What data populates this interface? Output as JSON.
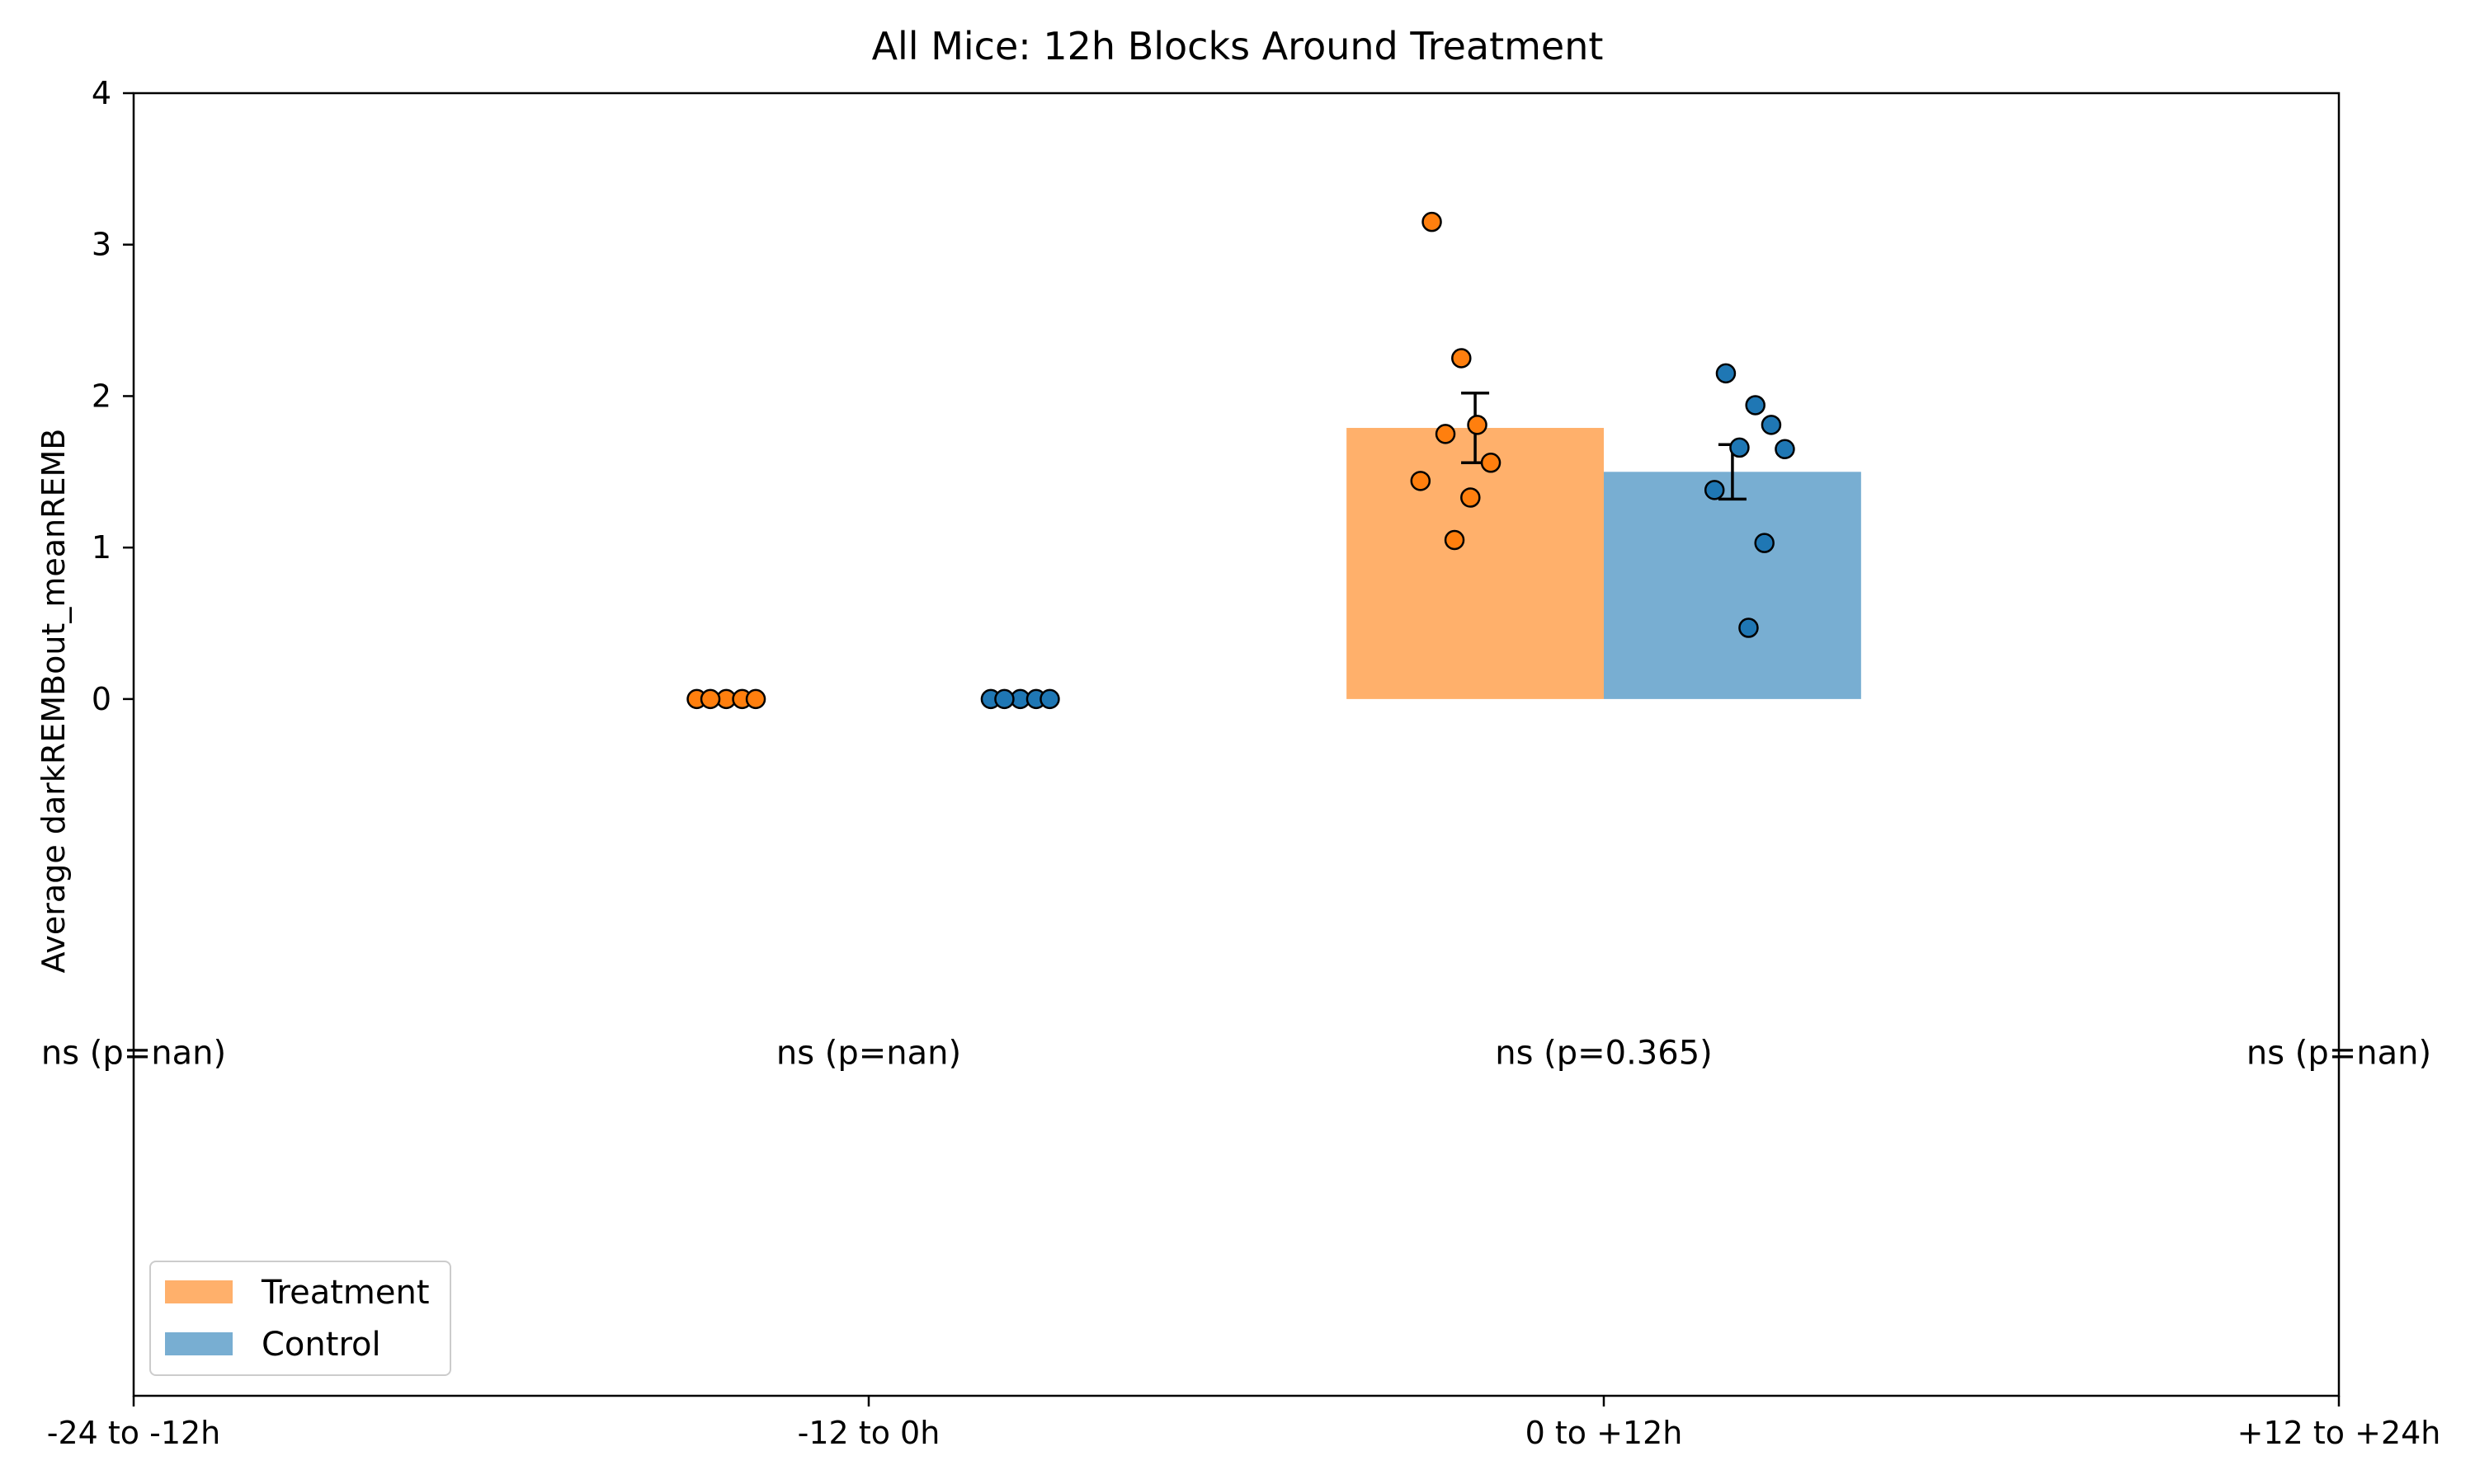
{
  "chart_data": {
    "type": "bar",
    "title": "All Mice: 12h Blocks Around Treatment",
    "xlabel": "",
    "ylabel": "Average darkREMBout_meanREMB",
    "categories": [
      "-24 to -12h",
      "-12 to 0h",
      "0 to +12h",
      "+12 to +24h"
    ],
    "yticks": [
      "0",
      "1",
      "2",
      "3",
      "4"
    ],
    "ylim": [
      -4.6,
      4
    ],
    "grid": false,
    "legend_position": "lower-left",
    "colors": {
      "treatment_bar": "#ffb06b",
      "control_bar": "#78aed2",
      "treatment_point": "#ff7f0e",
      "control_point": "#1f77b4"
    },
    "series": [
      {
        "name": "Treatment",
        "means": [
          null,
          null,
          1.79,
          null
        ],
        "sem": [
          null,
          null,
          0.23,
          null
        ],
        "points": [
          [],
          [
            0,
            0,
            0,
            0,
            0
          ],
          [
            3.15,
            2.25,
            1.81,
            1.75,
            1.56,
            1.44,
            1.33,
            1.05
          ],
          []
        ]
      },
      {
        "name": "Control",
        "means": [
          null,
          null,
          1.5,
          null
        ],
        "sem": [
          null,
          null,
          0.18,
          null
        ],
        "points": [
          [],
          [
            0,
            0,
            0,
            0,
            0
          ],
          [
            2.15,
            1.94,
            1.81,
            1.66,
            1.65,
            1.38,
            1.03,
            0.47
          ],
          []
        ]
      }
    ],
    "annotations": [
      "ns (p=nan)",
      "ns (p=nan)",
      "ns (p=0.365)",
      "ns (p=nan)"
    ]
  }
}
